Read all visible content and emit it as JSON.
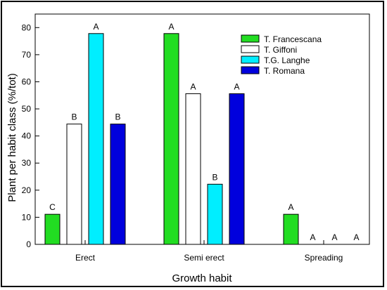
{
  "chart_data": {
    "type": "bar",
    "title": "",
    "xlabel": "Growth habit",
    "ylabel": "Plant per habit class (%/tot)",
    "ylim": [
      0,
      85
    ],
    "yticks": [
      0,
      10,
      20,
      30,
      40,
      50,
      60,
      70,
      80
    ],
    "categories": [
      "Erect",
      "Semi erect",
      "Spreading"
    ],
    "legend_position": "top-right",
    "grid": false,
    "series": [
      {
        "name": "T. Francescana",
        "color": "#22dd22",
        "values": [
          11.1,
          77.8,
          11.1
        ],
        "letters": [
          "C",
          "A",
          "A"
        ]
      },
      {
        "name": "T. Giffoni",
        "color": "#ffffff",
        "values": [
          44.4,
          55.6,
          0
        ],
        "letters": [
          "B",
          "A",
          "A"
        ]
      },
      {
        "name": "T.G. Langhe",
        "color": "#00eeff",
        "values": [
          77.8,
          22.2,
          0
        ],
        "letters": [
          "A",
          "B",
          "A"
        ]
      },
      {
        "name": "T. Romana",
        "color": "#0000dd",
        "values": [
          44.4,
          55.6,
          0
        ],
        "letters": [
          "B",
          "A",
          "A"
        ]
      }
    ]
  }
}
